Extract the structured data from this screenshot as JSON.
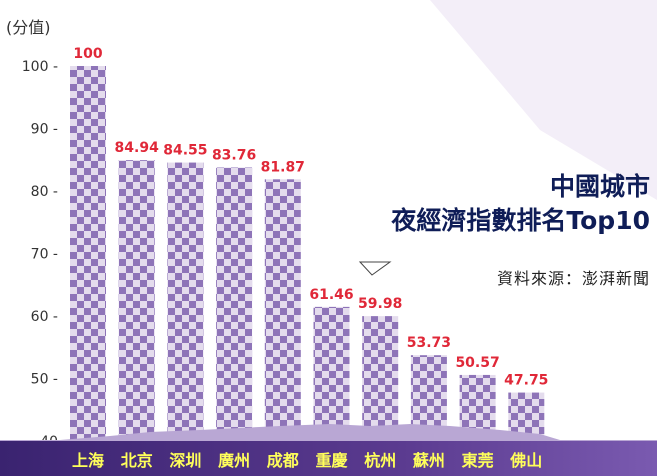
{
  "chart_data": {
    "type": "bar",
    "title_lines": [
      "中國城市",
      "夜經濟指數排名Top10"
    ],
    "source": "資料來源：澎湃新聞",
    "ylabel": "(分值)",
    "ylim": [
      40,
      100
    ],
    "yticks": [
      "40",
      "50 -",
      "60 -",
      "70 -",
      "80 -",
      "90 -",
      "100 -"
    ],
    "ytick_values": [
      40,
      50,
      60,
      70,
      80,
      90,
      100
    ],
    "categories": [
      "上海",
      "北京",
      "深圳",
      "廣州",
      "成都",
      "重慶",
      "杭州",
      "蘇州",
      "東莞",
      "佛山"
    ],
    "values": [
      100,
      84.94,
      84.55,
      83.76,
      81.87,
      61.46,
      59.98,
      53.73,
      50.57,
      47.75
    ],
    "value_labels": [
      "100",
      "84.94",
      "84.55",
      "83.76",
      "81.87",
      "61.46",
      "59.98",
      "53.73",
      "50.57",
      "47.75"
    ],
    "colors": {
      "bar_check_dark": "#8e74b8",
      "bar_check_light": "#e4dced",
      "value_label": "#e02838",
      "category_label": "#ffff5a",
      "footer": "#2b1a5c",
      "title": "#0f1d57"
    }
  }
}
